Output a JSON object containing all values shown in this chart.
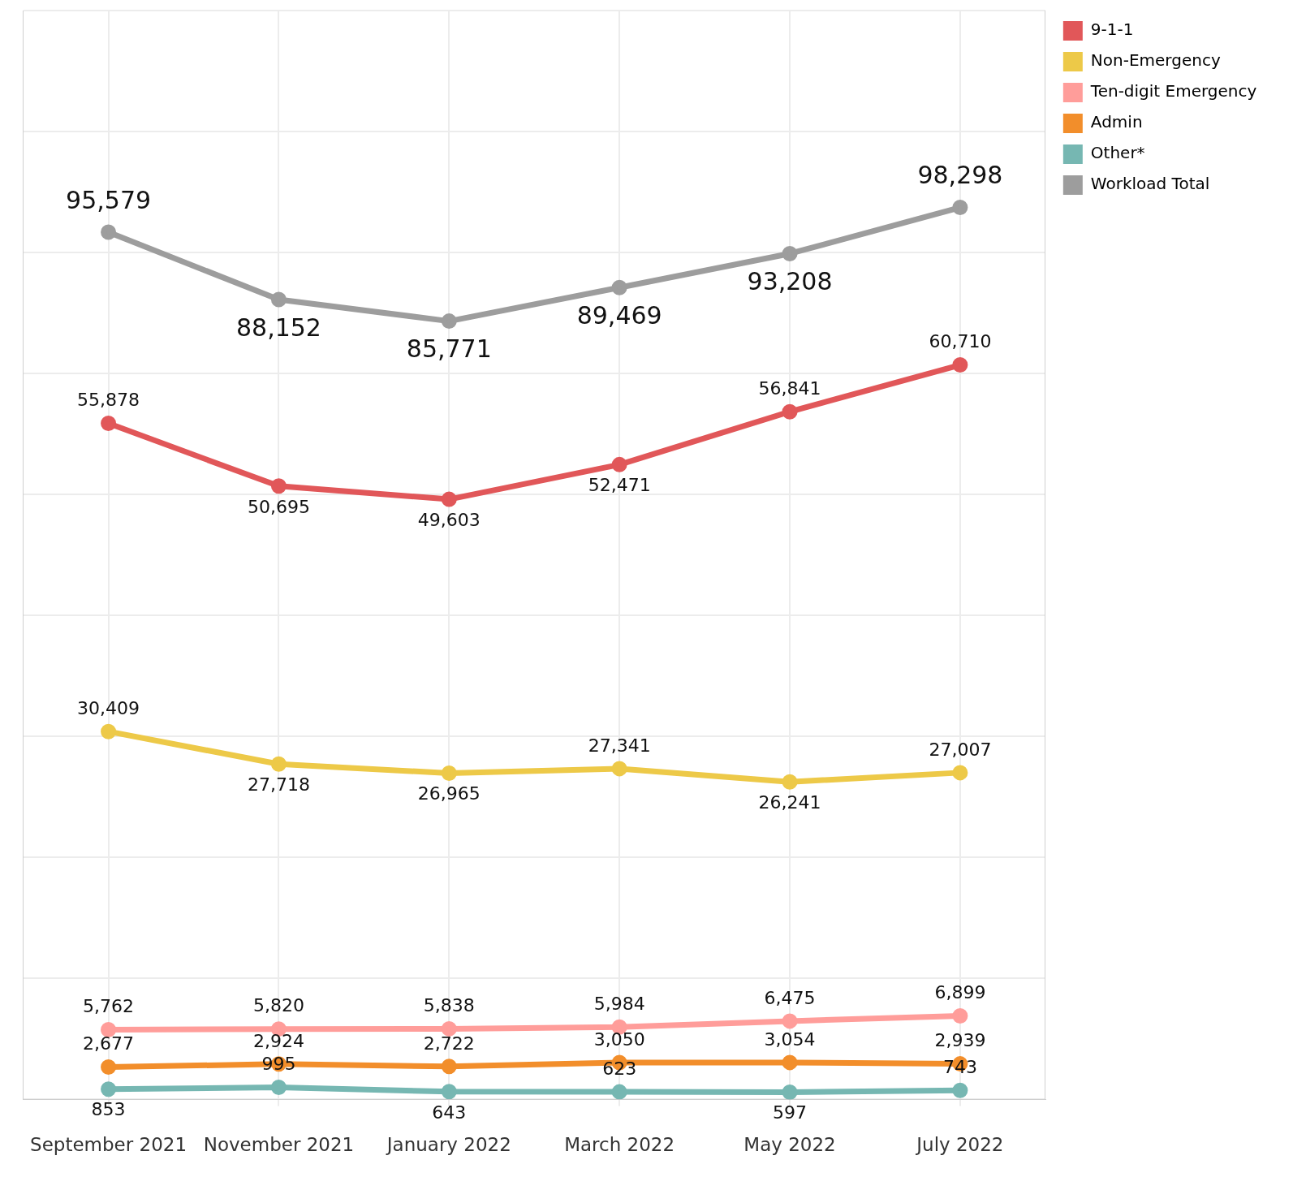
{
  "chart_data": {
    "type": "line",
    "categories": [
      "September 2021",
      "November 2021",
      "January 2022",
      "March 2022",
      "May 2022",
      "July 2022"
    ],
    "series": [
      {
        "name": "9-1-1",
        "color": "#e15759",
        "values": [
          55878,
          50695,
          49603,
          52471,
          56841,
          60710
        ],
        "value_labels": [
          "55,878",
          "50,695",
          "49,603",
          "52,471",
          "56,841",
          "60,710"
        ]
      },
      {
        "name": "Non-Emergency",
        "color": "#edc948",
        "values": [
          30409,
          27718,
          26965,
          27341,
          26241,
          27007
        ],
        "value_labels": [
          "30,409",
          "27,718",
          "26,965",
          "27,341",
          "26,241",
          "27,007"
        ]
      },
      {
        "name": "Ten-digit Emergency",
        "color": "#ff9d9a",
        "values": [
          5762,
          5820,
          5838,
          5984,
          6475,
          6899
        ],
        "value_labels": [
          "5,762",
          "5,820",
          "5,838",
          "5,984",
          "6,475",
          "6,899"
        ]
      },
      {
        "name": "Admin",
        "color": "#f28e2b",
        "values": [
          2677,
          2924,
          2722,
          3050,
          3054,
          2939
        ],
        "value_labels": [
          "2,677",
          "2,924",
          "2,722",
          "3,050",
          "3,054",
          "2,939"
        ]
      },
      {
        "name": "Other*",
        "color": "#76b7b2",
        "values": [
          853,
          995,
          643,
          623,
          597,
          743
        ],
        "value_labels": [
          "853",
          "995",
          "643",
          "623",
          "597",
          "743"
        ]
      },
      {
        "name": "Workload Total",
        "color": "#9d9d9d",
        "axis": "y2",
        "values": [
          95579,
          88152,
          85771,
          89469,
          93208,
          98298
        ],
        "value_labels": [
          "95,579",
          "88,152",
          "85,771",
          "89,469",
          "93,208",
          "98,298"
        ]
      }
    ],
    "ylim": [
      0,
      90000
    ],
    "yticks": [
      0,
      10000,
      20000,
      30000,
      40000,
      50000,
      60000,
      70000,
      80000,
      90000
    ],
    "tick_labels": "x",
    "grid": true,
    "legend": "right",
    "marker": "circle",
    "line_style": "solid"
  }
}
